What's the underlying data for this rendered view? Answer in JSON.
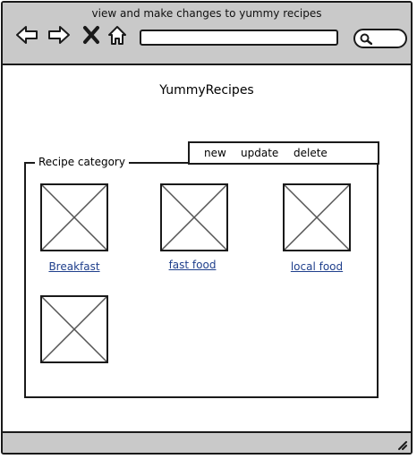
{
  "window": {
    "title": "view and make changes to yummy recipes"
  },
  "toolbar": {
    "back_icon": "arrow-left-icon",
    "forward_icon": "arrow-right-icon",
    "stop_icon": "close-icon",
    "home_icon": "home-icon",
    "url_value": "",
    "search_icon": "search-icon"
  },
  "page": {
    "heading": "YummyRecipes"
  },
  "category": {
    "legend": "Recipe category",
    "actions": [
      "new",
      "update",
      "delete"
    ],
    "items": [
      {
        "label": "Breakfast"
      },
      {
        "label": "fast food"
      },
      {
        "label": "local food"
      },
      {
        "label": ""
      }
    ]
  },
  "colors": {
    "chrome": "#c9c9c9",
    "link": "#1f3f8c",
    "border": "#1a1a1a"
  }
}
